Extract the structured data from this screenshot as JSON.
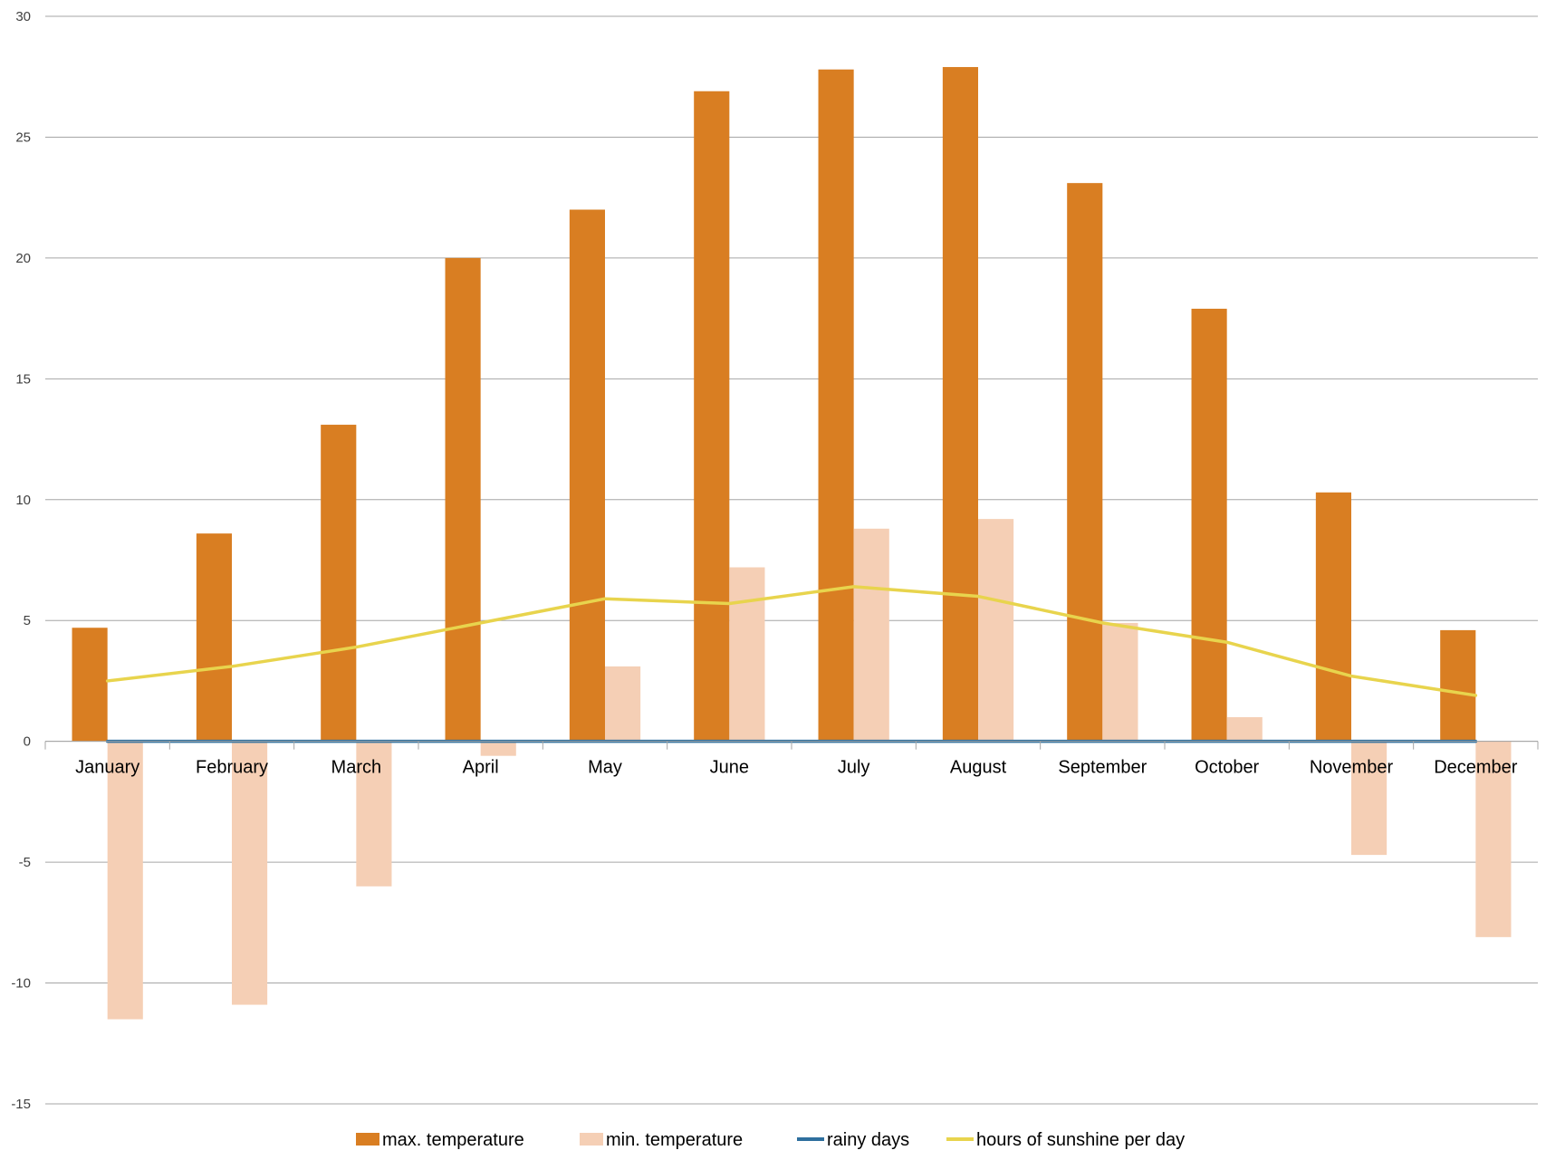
{
  "chart_data": {
    "type": "bar",
    "title": "",
    "xlabel": "",
    "ylabel": "",
    "ylim": [
      -15,
      30
    ],
    "yticks": [
      -15,
      -10,
      -5,
      0,
      5,
      10,
      15,
      20,
      25,
      30
    ],
    "grid": true,
    "legend_position": "bottom",
    "categories": [
      "January",
      "February",
      "March",
      "April",
      "May",
      "June",
      "July",
      "August",
      "September",
      "October",
      "November",
      "December"
    ],
    "series": [
      {
        "name": "max.  temperature",
        "kind": "bar",
        "color": "#D97E22",
        "values": [
          4.7,
          8.6,
          13.1,
          20.0,
          22.0,
          26.9,
          27.8,
          27.9,
          23.1,
          17.9,
          10.3,
          4.6
        ]
      },
      {
        "name": "min. temperature",
        "kind": "bar",
        "color": "#F5CFB5",
        "values": [
          -11.5,
          -10.9,
          -6.0,
          -0.6,
          3.1,
          7.2,
          8.8,
          9.2,
          4.9,
          1.0,
          -4.7,
          -8.1
        ]
      },
      {
        "name": "rainy days",
        "kind": "line",
        "color": "#2E6F9E",
        "values": [
          0,
          0,
          0,
          0,
          0,
          0,
          0,
          0,
          0,
          0,
          0,
          0
        ]
      },
      {
        "name": "hours of sunshine per day",
        "kind": "line",
        "color": "#E8D44D",
        "values": [
          2.5,
          3.1,
          3.9,
          4.9,
          5.9,
          5.7,
          6.4,
          6.0,
          4.9,
          4.1,
          2.7,
          1.9
        ]
      }
    ]
  }
}
